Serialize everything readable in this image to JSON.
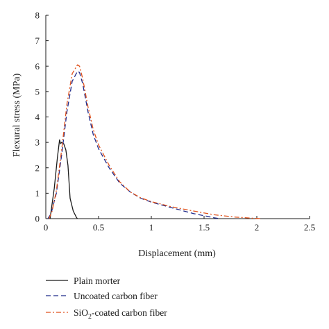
{
  "chart_data": {
    "type": "line",
    "title": "",
    "xlabel": "Displacement (mm)",
    "ylabel": "Flexural stress (MPa)",
    "xlim": [
      0,
      2.5
    ],
    "ylim": [
      0,
      8
    ],
    "xticks": [
      "0",
      "0.5",
      "1",
      "1.5",
      "2",
      "2.5"
    ],
    "yticks": [
      "0",
      "1",
      "2",
      "3",
      "4",
      "5",
      "6",
      "7",
      "8"
    ],
    "grid": false,
    "legend_position": "bottom-left, below plot",
    "series": [
      {
        "name": "Plain morter",
        "color": "#1a1a1a",
        "dash": "solid",
        "x": [
          0.04,
          0.08,
          0.11,
          0.13,
          0.14,
          0.15,
          0.17,
          0.19,
          0.21,
          0.23,
          0.26,
          0.29,
          0.3
        ],
        "y": [
          0.0,
          1.2,
          2.4,
          3.1,
          2.95,
          3.0,
          2.95,
          2.7,
          2.1,
          0.8,
          0.3,
          0.05,
          0.0
        ]
      },
      {
        "name": "Uncoated carbon fiber",
        "color": "#1f2a8a",
        "dash": "dashed",
        "x": [
          0.02,
          0.05,
          0.1,
          0.15,
          0.2,
          0.25,
          0.3,
          0.32,
          0.35,
          0.4,
          0.45,
          0.5,
          0.6,
          0.7,
          0.8,
          0.9,
          1.0,
          1.2,
          1.4,
          1.6,
          1.65
        ],
        "y": [
          0.0,
          0.2,
          1.0,
          2.5,
          4.2,
          5.4,
          5.8,
          5.75,
          5.3,
          4.2,
          3.3,
          2.75,
          2.0,
          1.4,
          1.05,
          0.8,
          0.65,
          0.42,
          0.2,
          0.03,
          0.0
        ]
      },
      {
        "name": "SiO2-coated carbon fiber",
        "color": "#e0521c",
        "dash": "dashdot",
        "x": [
          0.03,
          0.06,
          0.1,
          0.15,
          0.2,
          0.25,
          0.3,
          0.32,
          0.35,
          0.4,
          0.45,
          0.5,
          0.6,
          0.7,
          0.8,
          0.9,
          1.0,
          1.2,
          1.4,
          1.6,
          1.8,
          1.95,
          2.05
        ],
        "y": [
          0.0,
          0.3,
          1.1,
          2.7,
          4.5,
          5.7,
          6.05,
          6.0,
          5.5,
          4.4,
          3.5,
          2.9,
          2.1,
          1.45,
          1.05,
          0.82,
          0.67,
          0.46,
          0.3,
          0.15,
          0.06,
          0.02,
          0.0
        ]
      }
    ],
    "legend": [
      {
        "label": "Plain morter",
        "label_main": "Plain morter",
        "label_sub": "",
        "label_tail": ""
      },
      {
        "label": "Uncoated carbon fiber",
        "label_main": "Uncoated carbon fiber",
        "label_sub": "",
        "label_tail": ""
      },
      {
        "label": "SiO2-coated carbon fiber",
        "label_main": "SiO",
        "label_sub": "2",
        "label_tail": "-coated carbon fiber"
      }
    ]
  }
}
